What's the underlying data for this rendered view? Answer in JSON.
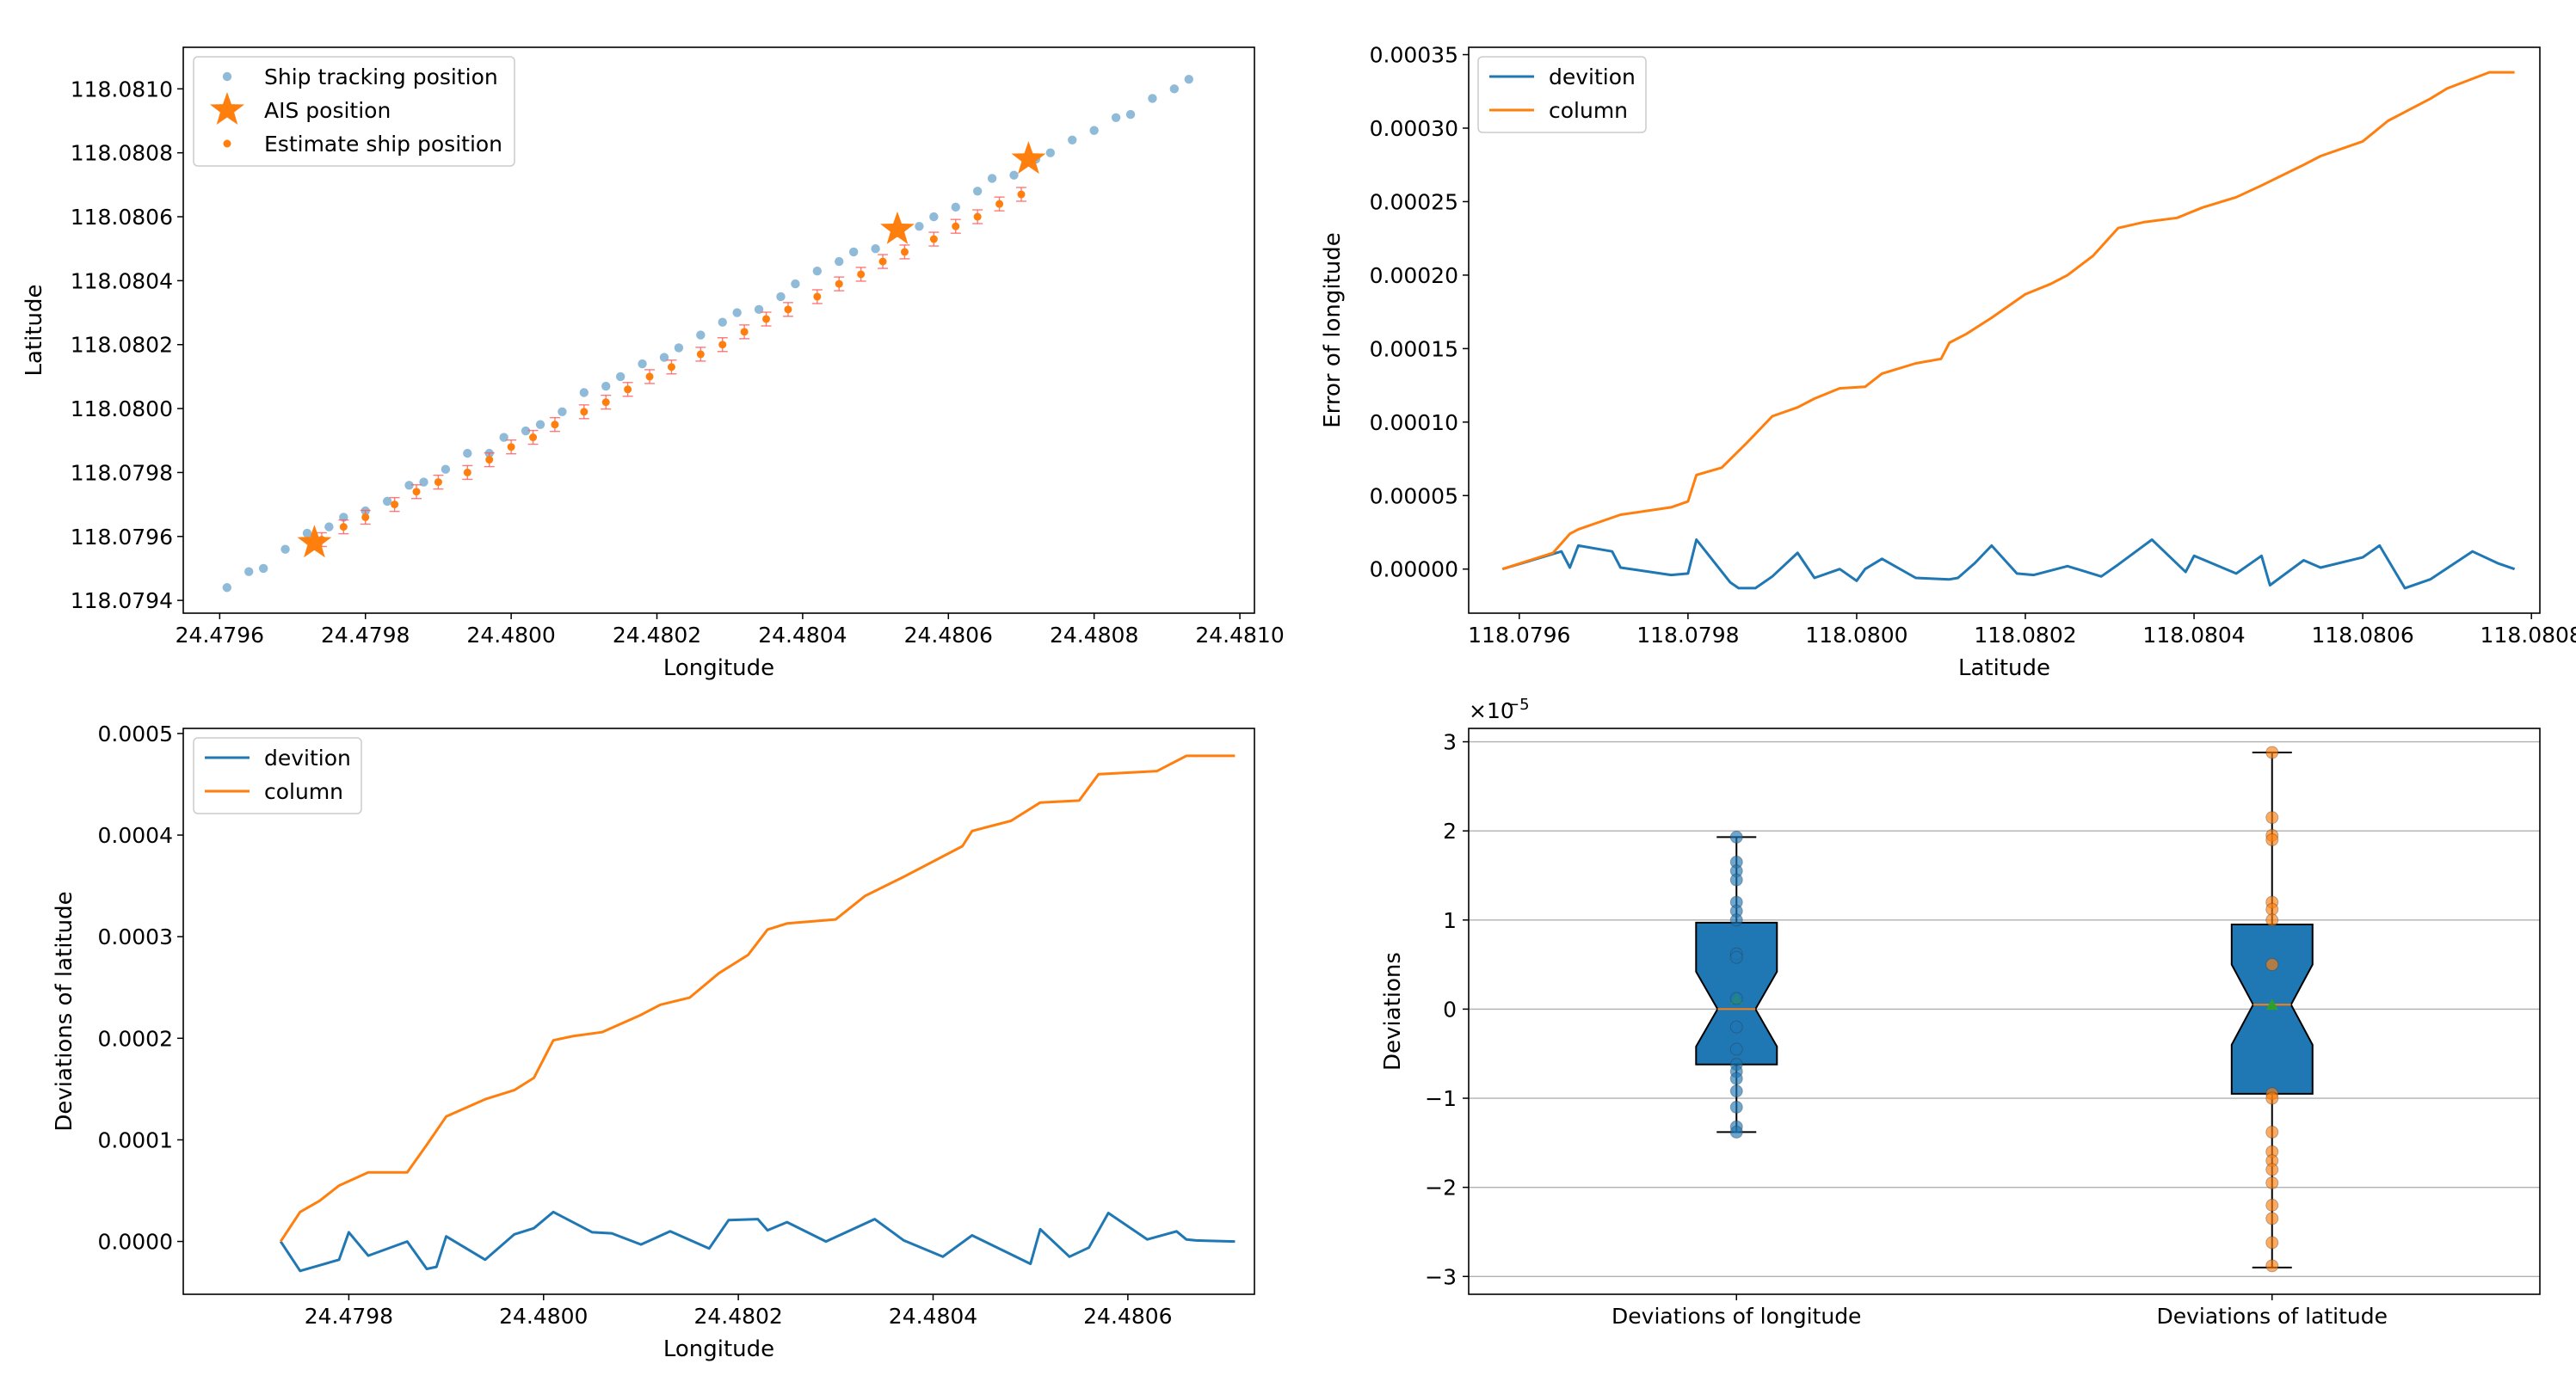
{
  "chart_data": [
    {
      "type": "scatter",
      "xlabel": "Longitude",
      "ylabel": "Latitude",
      "xlim": [
        24.47955,
        24.48102
      ],
      "ylim": [
        118.07936,
        118.08113
      ],
      "xticks": [
        24.4796,
        24.4798,
        24.48,
        24.4802,
        24.4804,
        24.4806,
        24.4808,
        24.481
      ],
      "xtick_labels": [
        "24.4796",
        "24.4798",
        "24.4800",
        "24.4802",
        "24.4804",
        "24.4806",
        "24.4808",
        "24.4810"
      ],
      "yticks": [
        118.0794,
        118.0796,
        118.0798,
        118.08,
        118.0802,
        118.0804,
        118.0806,
        118.0808,
        118.081
      ],
      "ytick_labels": [
        "118.0794",
        "118.0796",
        "118.0798",
        "118.0800",
        "118.0802",
        "118.0804",
        "118.0806",
        "118.0808",
        "118.0810"
      ],
      "legend": [
        "Ship tracking position",
        "AIS position",
        "Estimate ship position"
      ],
      "legend_loc": "upper-left",
      "tracking_x": [
        24.47961,
        24.47964,
        24.47966,
        24.47969,
        24.47972,
        24.47975,
        24.47977,
        24.4798,
        24.47983,
        24.47986,
        24.47988,
        24.47991,
        24.47994,
        24.47997,
        24.47999,
        24.48002,
        24.48004,
        24.48007,
        24.4801,
        24.48013,
        24.48015,
        24.48018,
        24.48021,
        24.48023,
        24.48026,
        24.48029,
        24.48031,
        24.48034,
        24.48037,
        24.48039,
        24.48042,
        24.48045,
        24.48047,
        24.4805,
        24.48053,
        24.48056,
        24.48058,
        24.48061,
        24.48064,
        24.48066,
        24.48069,
        24.48072,
        24.48074,
        24.48077,
        24.4808,
        24.48083,
        24.48085,
        24.48088,
        24.48091,
        24.48093
      ],
      "tracking_y": [
        118.07944,
        118.07949,
        118.0795,
        118.07956,
        118.07961,
        118.07963,
        118.07966,
        118.07968,
        118.07971,
        118.07976,
        118.07977,
        118.07981,
        118.07986,
        118.07986,
        118.07991,
        118.07993,
        118.07995,
        118.07999,
        118.08005,
        118.08007,
        118.0801,
        118.08014,
        118.08016,
        118.08019,
        118.08023,
        118.08027,
        118.0803,
        118.08031,
        118.08035,
        118.08039,
        118.08043,
        118.08046,
        118.08049,
        118.0805,
        118.08055,
        118.08057,
        118.0806,
        118.08063,
        118.08068,
        118.08072,
        118.08073,
        118.08078,
        118.0808,
        118.08084,
        118.08087,
        118.08091,
        118.08092,
        118.08097,
        118.081,
        118.08103
      ],
      "ais_x": [
        24.47973,
        24.48053,
        24.48071
      ],
      "ais_y": [
        118.07958,
        118.08056,
        118.08078
      ],
      "estimate_x": [
        24.47974,
        24.47977,
        24.4798,
        24.47984,
        24.47987,
        24.4799,
        24.47994,
        24.47997,
        24.48,
        24.48003,
        24.48006,
        24.4801,
        24.48013,
        24.48016,
        24.48019,
        24.48022,
        24.48026,
        24.48029,
        24.48032,
        24.48035,
        24.48038,
        24.48042,
        24.48045,
        24.48048,
        24.48051,
        24.48054,
        24.48058,
        24.48061,
        24.48064,
        24.48067,
        24.4807
      ],
      "estimate_y": [
        118.07959,
        118.07963,
        118.07966,
        118.0797,
        118.07974,
        118.07977,
        118.0798,
        118.07984,
        118.07988,
        118.07991,
        118.07995,
        118.07999,
        118.08002,
        118.08006,
        118.0801,
        118.08013,
        118.08017,
        118.0802,
        118.08024,
        118.08028,
        118.08031,
        118.08035,
        118.08039,
        118.08042,
        118.08046,
        118.08049,
        118.08053,
        118.08057,
        118.0806,
        118.08064,
        118.08067
      ]
    },
    {
      "type": "line",
      "xlabel": "Latitude",
      "ylabel": "Error of longitude",
      "xlim": [
        118.07954,
        118.08081
      ],
      "ylim": [
        -3e-05,
        0.000355
      ],
      "xticks": [
        118.0796,
        118.0798,
        118.08,
        118.0802,
        118.0804,
        118.0806,
        118.0808
      ],
      "xtick_labels": [
        "118.0796",
        "118.0798",
        "118.0800",
        "118.0802",
        "118.0804",
        "118.0806",
        "118.0808"
      ],
      "yticks": [
        0,
        5e-05,
        0.0001,
        0.00015,
        0.0002,
        0.00025,
        0.0003,
        0.00035
      ],
      "ytick_labels": [
        "0.00000",
        "0.00005",
        "0.00010",
        "0.00015",
        "0.00020",
        "0.00025",
        "0.00030",
        "0.00035"
      ],
      "legend": [
        "devition",
        "column"
      ],
      "legend_loc": "upper-left",
      "series": [
        {
          "name": "devition",
          "x": [
            118.07958,
            118.07965,
            118.07966,
            118.07967,
            118.07971,
            118.07972,
            118.07978,
            118.0798,
            118.07981,
            118.07985,
            118.07986,
            118.07988,
            118.0799,
            118.07993,
            118.07995,
            118.07998,
            118.08,
            118.08001,
            118.08003,
            118.08007,
            118.08011,
            118.08012,
            118.08014,
            118.08016,
            118.08019,
            118.08021,
            118.08025,
            118.08029,
            118.08031,
            118.08035,
            118.08039,
            118.0804,
            118.08045,
            118.08048,
            118.08049,
            118.08053,
            118.08055,
            118.0806,
            118.08062,
            118.08065,
            118.08068,
            118.08073,
            118.08076,
            118.08078
          ],
          "y": [
            0.0,
            1.2e-05,
            1e-06,
            1.6e-05,
            1.2e-05,
            1e-06,
            -4e-06,
            -3e-06,
            2e-05,
            -9e-06,
            -1.3e-05,
            -1.3e-05,
            -5e-06,
            1.1e-05,
            -6e-06,
            0.0,
            -8e-06,
            0.0,
            7e-06,
            -6e-06,
            -7e-06,
            -6e-06,
            4e-06,
            1.6e-05,
            -3e-06,
            -4e-06,
            2e-06,
            -5e-06,
            3e-06,
            2e-05,
            -2e-06,
            9e-06,
            -3e-06,
            9e-06,
            -1.1e-05,
            6e-06,
            1e-06,
            8e-06,
            1.6e-05,
            -1.3e-05,
            -7e-06,
            1.2e-05,
            4e-06,
            0.0
          ]
        },
        {
          "name": "column",
          "x": [
            118.07958,
            118.07964,
            118.07966,
            118.07967,
            118.07972,
            118.07978,
            118.0798,
            118.07981,
            118.07984,
            118.07987,
            118.0799,
            118.07993,
            118.07995,
            118.07998,
            118.08001,
            118.08003,
            118.08007,
            118.0801,
            118.08011,
            118.08013,
            118.08016,
            118.0802,
            118.08023,
            118.08025,
            118.08028,
            118.08031,
            118.08034,
            118.08038,
            118.08041,
            118.08045,
            118.08048,
            118.08053,
            118.08055,
            118.0806,
            118.08063,
            118.08068,
            118.0807,
            118.08075,
            118.08078
          ],
          "y": [
            0.0,
            1.1e-05,
            2.4e-05,
            2.7e-05,
            3.7e-05,
            4.2e-05,
            4.6e-05,
            6.4e-05,
            6.9e-05,
            8.6e-05,
            0.000104,
            0.00011,
            0.000116,
            0.000123,
            0.000124,
            0.000133,
            0.00014,
            0.000143,
            0.000154,
            0.00016,
            0.000171,
            0.000187,
            0.000194,
            0.0002,
            0.000213,
            0.000232,
            0.000236,
            0.000239,
            0.000246,
            0.000253,
            0.000261,
            0.000275,
            0.000281,
            0.000291,
            0.000305,
            0.00032,
            0.000327,
            0.000338,
            0.000338
          ]
        }
      ]
    },
    {
      "type": "line",
      "xlabel": "Longitude",
      "ylabel": "Deviations of latitude",
      "xlim": [
        24.47963,
        24.48073
      ],
      "ylim": [
        -5.2e-05,
        0.000505
      ],
      "xticks": [
        24.4798,
        24.48,
        24.4802,
        24.4804,
        24.4806
      ],
      "xtick_labels": [
        "24.4798",
        "24.4800",
        "24.4802",
        "24.4804",
        "24.4806"
      ],
      "yticks": [
        0,
        0.0001,
        0.0002,
        0.0003,
        0.0004,
        0.0005
      ],
      "ytick_labels": [
        "0.0000",
        "0.0001",
        "0.0002",
        "0.0003",
        "0.0004",
        "0.0005"
      ],
      "legend": [
        "devition",
        "column"
      ],
      "legend_loc": "upper-left",
      "series": [
        {
          "name": "devition",
          "x": [
            24.47973,
            24.47975,
            24.47979,
            24.4798,
            24.47982,
            24.47986,
            24.47988,
            24.47989,
            24.4799,
            24.47994,
            24.47997,
            24.47999,
            24.48001,
            24.48005,
            24.48007,
            24.4801,
            24.48013,
            24.48017,
            24.48019,
            24.48022,
            24.48023,
            24.48025,
            24.48029,
            24.48034,
            24.48037,
            24.48041,
            24.48044,
            24.4805,
            24.48051,
            24.48054,
            24.48056,
            24.48058,
            24.48062,
            24.48065,
            24.48066,
            24.48067,
            24.48071
          ],
          "y": [
            0.0,
            -2.9e-05,
            -1.8e-05,
            9e-06,
            -1.4e-05,
            0.0,
            -2.7e-05,
            -2.5e-05,
            5e-06,
            -1.8e-05,
            7e-06,
            1.3e-05,
            2.9e-05,
            9e-06,
            8e-06,
            -3e-06,
            1e-05,
            -7e-06,
            2.1e-05,
            2.2e-05,
            1.1e-05,
            1.9e-05,
            0.0,
            2.2e-05,
            1e-06,
            -1.5e-05,
            6e-06,
            -2.2e-05,
            1.2e-05,
            -1.5e-05,
            -6e-06,
            2.8e-05,
            2e-06,
            1e-05,
            2e-06,
            1e-06,
            0.0
          ]
        },
        {
          "name": "column",
          "x": [
            24.47973,
            24.47975,
            24.47977,
            24.47979,
            24.47982,
            24.47986,
            24.47988,
            24.4799,
            24.47994,
            24.47997,
            24.47999,
            24.48001,
            24.48003,
            24.48006,
            24.4801,
            24.48012,
            24.48015,
            24.48018,
            24.48021,
            24.48023,
            24.48025,
            24.4803,
            24.48033,
            24.48037,
            24.48043,
            24.48044,
            24.48048,
            24.48051,
            24.48055,
            24.48057,
            24.48063,
            24.48066,
            24.48071
          ],
          "y": [
            0.0,
            2.9e-05,
            4e-05,
            5.5e-05,
            6.8e-05,
            6.8e-05,
            9.5e-05,
            0.000123,
            0.00014,
            0.000149,
            0.000161,
            0.000198,
            0.000202,
            0.000206,
            0.000223,
            0.000233,
            0.00024,
            0.000264,
            0.000282,
            0.000307,
            0.000313,
            0.000317,
            0.00034,
            0.000359,
            0.000389,
            0.000404,
            0.000414,
            0.000432,
            0.000434,
            0.00046,
            0.000463,
            0.000478,
            0.000478
          ]
        }
      ]
    },
    {
      "type": "box",
      "ylabel": "Deviations",
      "scale_label": "×10",
      "scale_exponent": "−5",
      "ylim": [
        -3.2,
        3.15
      ],
      "yticks": [
        -3,
        -2,
        -1,
        0,
        1,
        2,
        3
      ],
      "ytick_labels": [
        "−3",
        "−2",
        "−1",
        "0",
        "1",
        "2",
        "3"
      ],
      "grid": "y",
      "categories": [
        "Deviations of longitude",
        "Deviations of latitude"
      ],
      "boxes": [
        {
          "name": "Deviations of longitude",
          "color": "#1f77b4",
          "whisker_low": -1.38,
          "q1": -0.62,
          "median": 0.0,
          "q3": 0.97,
          "whisker_high": 1.93,
          "notch_low": -0.42,
          "notch_high": 0.42,
          "mean": 0.12,
          "points": [
            1.93,
            1.65,
            1.55,
            1.45,
            1.2,
            1.1,
            1.0,
            0.62,
            0.58,
            0.12,
            -0.2,
            -0.45,
            -0.62,
            -0.7,
            -0.78,
            -0.92,
            -1.1,
            -1.32,
            -1.38
          ]
        },
        {
          "name": "Deviations of latitude",
          "color": "#ff7f0e",
          "whisker_low": -2.9,
          "q1": -0.95,
          "median": 0.05,
          "q3": 0.95,
          "whisker_high": 2.88,
          "notch_low": -0.4,
          "notch_high": 0.5,
          "mean": 0.05,
          "points": [
            2.88,
            2.15,
            1.95,
            1.9,
            1.2,
            1.12,
            1.0,
            0.5,
            -0.95,
            -1.0,
            -1.38,
            -1.6,
            -1.7,
            -1.8,
            -1.95,
            -2.2,
            -2.35,
            -2.62,
            -2.88
          ]
        }
      ]
    }
  ]
}
